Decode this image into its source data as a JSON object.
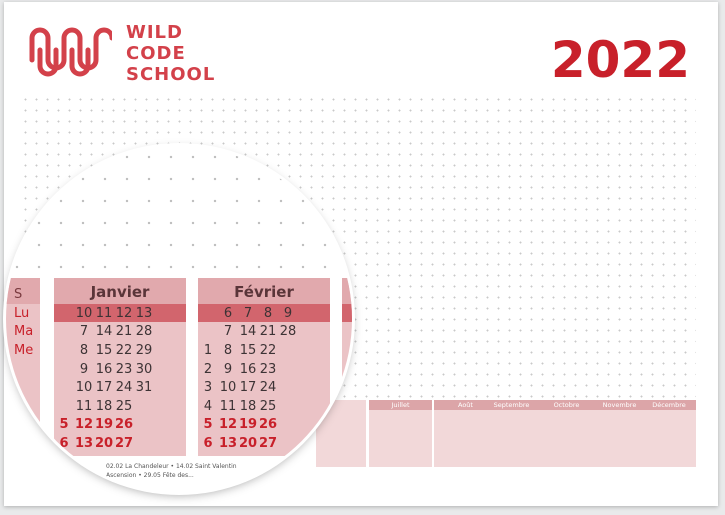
{
  "brand": {
    "line1": "WILD",
    "line2": "CODE",
    "line3": "SCHOOL",
    "color": "#d3414a"
  },
  "year": "2022",
  "mini_months": [
    "Juillet",
    "Août",
    "Septembre",
    "Octobre",
    "Novembre",
    "Décembre"
  ],
  "magnifier": {
    "left_days": [
      "S",
      "Lu",
      "Ma",
      "Me"
    ],
    "months": [
      {
        "name": "Janvier",
        "rows": [
          [
            "",
            "10",
            "11",
            "12",
            "13"
          ],
          [
            "",
            "7",
            "14",
            "21",
            "28"
          ],
          [
            "",
            "8",
            "15",
            "22",
            "29"
          ],
          [
            "",
            "9",
            "16",
            "23",
            "30"
          ],
          [
            "",
            "10",
            "17",
            "24",
            "31"
          ],
          [
            "",
            "11",
            "18",
            "25",
            ""
          ],
          [
            "5",
            "12",
            "19",
            "26",
            ""
          ],
          [
            "6",
            "13",
            "20",
            "27",
            ""
          ]
        ]
      },
      {
        "name": "Février",
        "rows": [
          [
            "",
            "6",
            "7",
            "8",
            "9"
          ],
          [
            "",
            "7",
            "14",
            "21",
            "28"
          ],
          [
            "1",
            "8",
            "15",
            "22",
            ""
          ],
          [
            "2",
            "9",
            "16",
            "23",
            ""
          ],
          [
            "3",
            "10",
            "17",
            "24",
            ""
          ],
          [
            "4",
            "11",
            "18",
            "25",
            ""
          ],
          [
            "5",
            "12",
            "19",
            "26",
            ""
          ],
          [
            "6",
            "13",
            "20",
            "27",
            ""
          ]
        ]
      }
    ],
    "footer_line1": "02.02 La Chandeleur • 14.02 Saint Valentin",
    "footer_line2": "Ascension • 29.05 Fête des..."
  }
}
